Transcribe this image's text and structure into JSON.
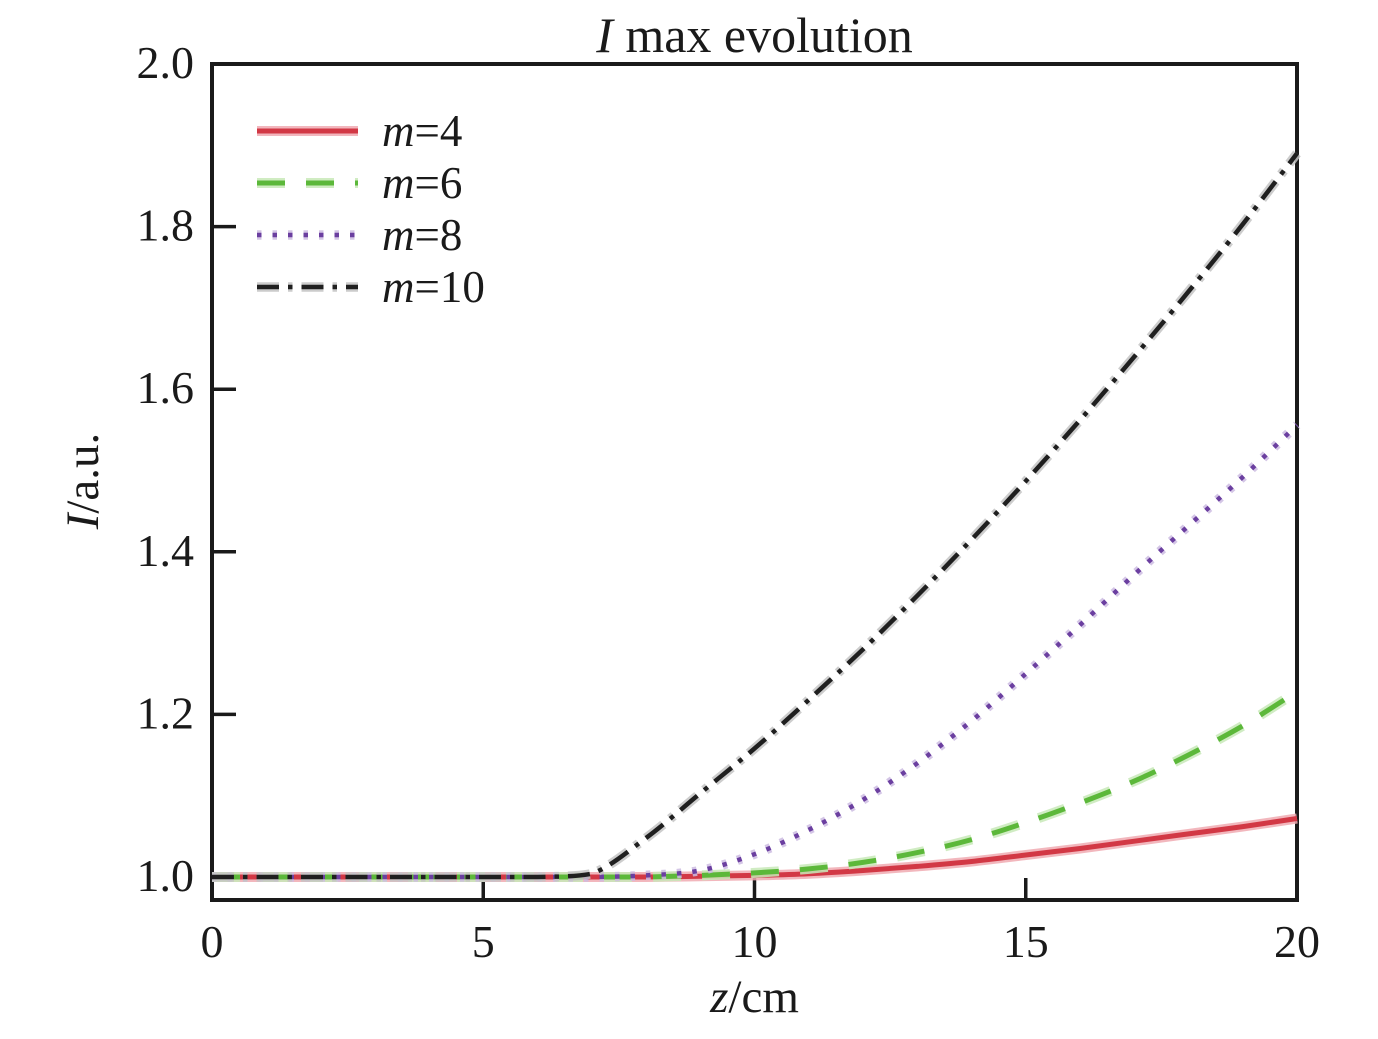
{
  "title": {
    "italic": "I",
    "rest": " max evolution"
  },
  "y_axis_label": {
    "italic": "I",
    "rest": "/a.u."
  },
  "x_axis_label": {
    "italic": "z",
    "rest": "/cm"
  },
  "colors": {
    "axis": "#1a1a1a",
    "text": "#1a1a1a",
    "background": "#ffffff"
  },
  "chart_data": {
    "type": "line",
    "title": "I max evolution",
    "xlabel": "z/cm",
    "ylabel": "I/a.u.",
    "xlim": [
      0,
      20
    ],
    "ylim": [
      0.9717,
      2.0
    ],
    "grid": false,
    "legend_position": "upper-left",
    "x_ticks": [
      "0",
      "5",
      "10",
      "15",
      "20"
    ],
    "y_ticks": [
      "1.0",
      "1.2",
      "1.4",
      "1.6",
      "1.8",
      "2.0"
    ],
    "x": [
      0,
      1,
      2,
      3,
      4,
      5,
      6,
      7,
      8,
      9,
      10,
      11,
      12,
      13,
      14,
      15,
      16,
      17,
      18,
      19,
      20
    ],
    "series": [
      {
        "name": "m=4",
        "label_italic": "m",
        "label_rest": "=4",
        "color": "#d23845",
        "halo": "#f0aab2",
        "style": "solid",
        "values": [
          1.0,
          1.0,
          1.0,
          1.0,
          1.0,
          1.0,
          1.0,
          1.0,
          1.0,
          1.001,
          1.002,
          1.004,
          1.008,
          1.013,
          1.019,
          1.027,
          1.035,
          1.044,
          1.053,
          1.062,
          1.072
        ]
      },
      {
        "name": "m=6",
        "label_italic": "m",
        "label_rest": "=6",
        "color": "#5cb83a",
        "halo": "#c8e9b8",
        "style": "dashed",
        "values": [
          1.0,
          1.0,
          1.0,
          1.0,
          1.0,
          1.0,
          1.0,
          1.0,
          1.0,
          1.002,
          1.005,
          1.01,
          1.018,
          1.03,
          1.046,
          1.067,
          1.091,
          1.118,
          1.15,
          1.186,
          1.228
        ]
      },
      {
        "name": "m=8",
        "label_italic": "m",
        "label_rest": "=8",
        "color": "#6b3fa0",
        "halo": "#cdbce2",
        "style": "dotted",
        "values": [
          1.0,
          1.0,
          1.0,
          1.0,
          1.0,
          1.0,
          1.0,
          1.0,
          1.002,
          1.008,
          1.028,
          1.058,
          1.095,
          1.14,
          1.192,
          1.25,
          1.31,
          1.372,
          1.432,
          1.492,
          1.556
        ]
      },
      {
        "name": "m=10",
        "label_italic": "m",
        "label_rest": "=10",
        "color": "#1f1f1f",
        "halo": "#c4c4c4",
        "style": "dashdot",
        "values": [
          1.0,
          1.0,
          1.0,
          1.0,
          1.0,
          1.0,
          1.0,
          1.004,
          1.048,
          1.103,
          1.158,
          1.218,
          1.28,
          1.346,
          1.415,
          1.487,
          1.562,
          1.64,
          1.72,
          1.803,
          1.89
        ]
      }
    ]
  }
}
